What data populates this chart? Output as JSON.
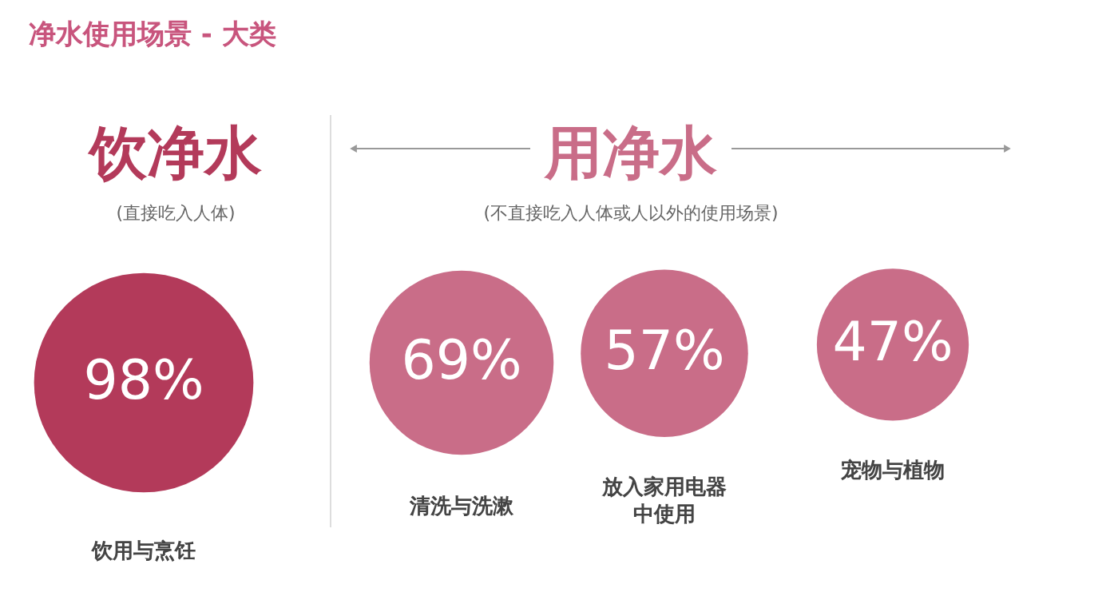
{
  "chart_data": {
    "type": "other",
    "title": "净水使用场景 - 大类",
    "categories": [
      "饮用与烹饪",
      "清洗与洗漱",
      "放入家用电器中使用",
      "宠物与植物"
    ],
    "values": [
      98,
      69,
      57,
      47
    ],
    "colors": [
      "#b33a5a",
      "#c96d88",
      "#c96d88",
      "#c96d88"
    ],
    "value_labels": [
      "98%",
      "69%",
      "57%",
      "47%"
    ],
    "annotations": [
      "饮净水",
      "(直接吃入人体)",
      "用净水",
      "(不直接吃入人体或人以外的使用场景)"
    ]
  }
}
